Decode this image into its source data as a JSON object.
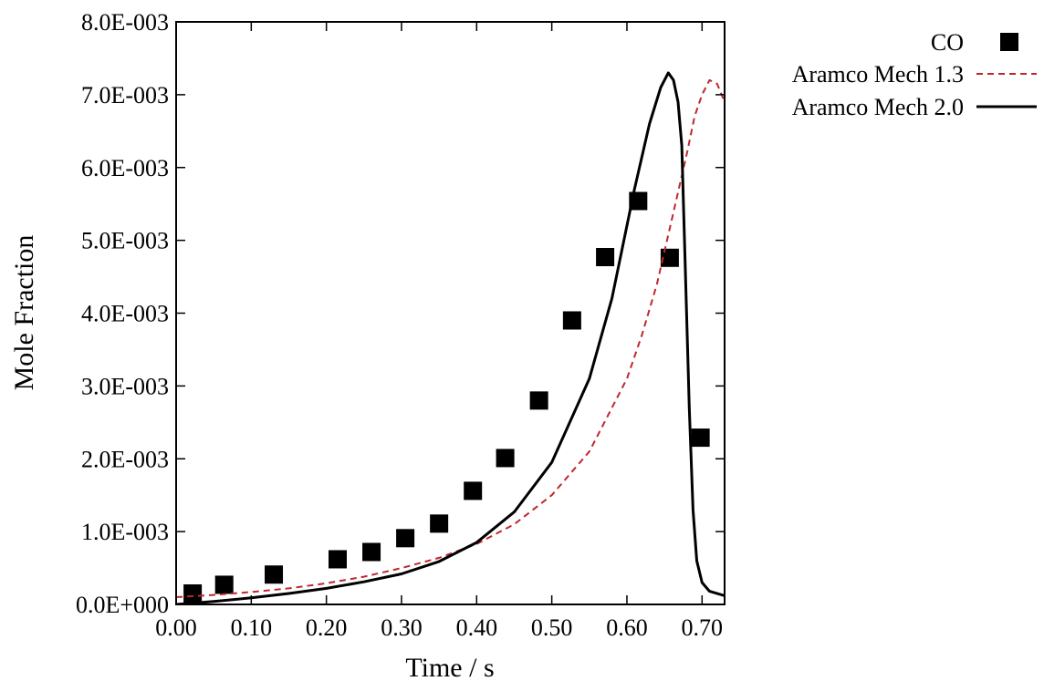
{
  "chart_data": {
    "type": "line",
    "title": "",
    "xlabel": "Time / s",
    "ylabel": "Mole Fraction",
    "xlim": [
      0.0,
      0.73
    ],
    "ylim": [
      0.0,
      0.008
    ],
    "x_ticks": [
      0.0,
      0.1,
      0.2,
      0.3,
      0.4,
      0.5,
      0.6,
      0.7
    ],
    "x_tick_labels": [
      "0.00",
      "0.10",
      "0.20",
      "0.30",
      "0.40",
      "0.50",
      "0.60",
      "0.70"
    ],
    "y_ticks": [
      0.0,
      0.001,
      0.002,
      0.003,
      0.004,
      0.005,
      0.006,
      0.007,
      0.008
    ],
    "y_tick_labels": [
      "0.0E+000",
      "1.0E-003",
      "2.0E-003",
      "3.0E-003",
      "4.0E-003",
      "5.0E-003",
      "6.0E-003",
      "7.0E-003",
      "8.0E-003"
    ],
    "grid": false,
    "legend_position": "outside-top-right",
    "series": [
      {
        "name": "CO",
        "style": "marker-square",
        "color": "#000000",
        "x": [
          0.022,
          0.064,
          0.13,
          0.215,
          0.26,
          0.305,
          0.35,
          0.395,
          0.438,
          0.483,
          0.527,
          0.571,
          0.615,
          0.657,
          0.698
        ],
        "y": [
          0.00015,
          0.00027,
          0.00041,
          0.00062,
          0.00072,
          0.00091,
          0.00111,
          0.00156,
          0.00201,
          0.0028,
          0.0039,
          0.00477,
          0.00554,
          0.00476,
          0.00229
        ]
      },
      {
        "name": "Aramco Mech 1.3",
        "style": "dashed",
        "color": "#c0272d",
        "x": [
          0.0,
          0.05,
          0.1,
          0.15,
          0.2,
          0.25,
          0.3,
          0.35,
          0.4,
          0.45,
          0.5,
          0.55,
          0.6,
          0.62,
          0.64,
          0.66,
          0.68,
          0.69,
          0.7,
          0.71,
          0.72,
          0.73
        ],
        "y": [
          0.0001,
          0.00013,
          0.00017,
          0.00022,
          0.00029,
          0.00038,
          0.0005,
          0.00064,
          0.00083,
          0.0011,
          0.0015,
          0.0021,
          0.0031,
          0.0037,
          0.0044,
          0.0053,
          0.0062,
          0.0067,
          0.007,
          0.0072,
          0.00715,
          0.0069
        ]
      },
      {
        "name": "Aramco Mech 2.0",
        "style": "solid",
        "color": "#000000",
        "x": [
          0.0,
          0.05,
          0.1,
          0.15,
          0.2,
          0.25,
          0.3,
          0.35,
          0.4,
          0.45,
          0.5,
          0.55,
          0.58,
          0.61,
          0.63,
          0.645,
          0.655,
          0.662,
          0.668,
          0.673,
          0.678,
          0.683,
          0.688,
          0.693,
          0.7,
          0.71,
          0.73
        ],
        "y": [
          0.0,
          4e-05,
          9e-05,
          0.00015,
          0.00022,
          0.00031,
          0.00042,
          0.00059,
          0.00085,
          0.00127,
          0.00195,
          0.0031,
          0.0042,
          0.0057,
          0.0066,
          0.0071,
          0.0073,
          0.0072,
          0.0069,
          0.0063,
          0.0045,
          0.0027,
          0.0013,
          0.0006,
          0.0003,
          0.00018,
          0.00012
        ]
      }
    ]
  }
}
